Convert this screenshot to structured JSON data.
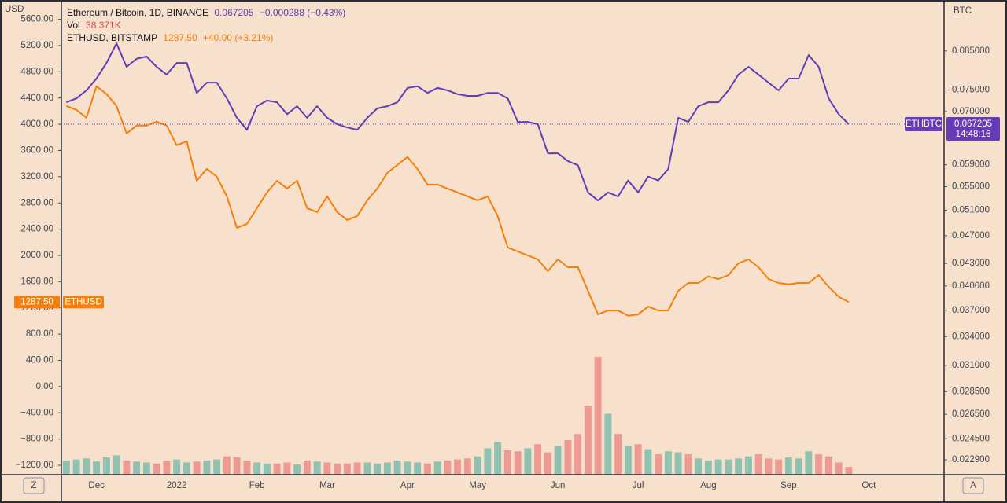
{
  "chart_data": {
    "type": "line",
    "ylabel": "USD",
    "y2label": "BTC",
    "legend": [
      {
        "text": "Ethereum / Bitcoin, 1D, BINANCE",
        "price": "0.067205",
        "change": "−0.000288 (−0.43%)"
      },
      {
        "text": "Vol",
        "price": "38.371K"
      },
      {
        "text": "ETHUSD, BITSTAMP",
        "price": "1287.50",
        "change": "+40.00 (+3.21%)"
      }
    ],
    "countdown": "14:48:16",
    "buttons": [
      "Z",
      "A"
    ],
    "categories": [
      null,
      null,
      null,
      "Dec",
      null,
      null,
      null,
      null,
      null,
      null,
      null,
      "2022",
      null,
      null,
      null,
      null,
      null,
      null,
      null,
      "Feb",
      null,
      null,
      null,
      null,
      null,
      null,
      "Mar",
      null,
      null,
      null,
      null,
      null,
      null,
      null,
      "Apr",
      null,
      null,
      null,
      null,
      null,
      null,
      "May",
      null,
      null,
      null,
      null,
      null,
      null,
      null,
      "Jun",
      null,
      null,
      null,
      null,
      null,
      null,
      null,
      "Jul",
      null,
      null,
      null,
      null,
      null,
      null,
      "Aug",
      null,
      null,
      null,
      null,
      null,
      null,
      null,
      "Sep",
      null,
      null,
      null,
      null,
      null,
      null,
      null,
      "Oct",
      null,
      null,
      null,
      null,
      null,
      null,
      null
    ],
    "series": [
      {
        "name": "ETHBTC",
        "color": "#673ab7",
        "axis": "y2",
        "values": [
          0.0721,
          0.073,
          0.0749,
          0.0778,
          0.0818,
          0.0871,
          0.0808,
          0.0829,
          0.0835,
          0.0808,
          0.0788,
          0.0818,
          0.0818,
          0.0743,
          0.0768,
          0.0768,
          0.073,
          0.0686,
          0.066,
          0.0712,
          0.0725,
          0.0721,
          0.0694,
          0.0712,
          0.0686,
          0.0712,
          0.0686,
          0.0672,
          0.0665,
          0.066,
          0.0686,
          0.0707,
          0.0712,
          0.0721,
          0.0755,
          0.0759,
          0.0743,
          0.0755,
          0.0749,
          0.074,
          0.0736,
          0.0736,
          0.0743,
          0.0743,
          0.073,
          0.0677,
          0.0677,
          0.0672,
          0.0612,
          0.0612,
          0.0597,
          0.0589,
          0.054,
          0.0526,
          0.054,
          0.0533,
          0.0561,
          0.054,
          0.0568,
          0.0561,
          0.0582,
          0.0686,
          0.0677,
          0.0712,
          0.0721,
          0.0721,
          0.0749,
          0.0788,
          0.0808,
          0.0788,
          0.0768,
          0.0749,
          0.0778,
          0.0778,
          0.0839,
          0.0808,
          0.073,
          0.0694,
          0.067205,
          null,
          null,
          null,
          null,
          null,
          null,
          null,
          null,
          null
        ]
      },
      {
        "name": "ETHUSD",
        "color": "#f57f0c",
        "values": [
          4280,
          4220,
          4100,
          4580,
          4460,
          4280,
          3860,
          3980,
          3980,
          4040,
          3980,
          3680,
          3740,
          3140,
          3320,
          3200,
          2900,
          2420,
          2480,
          2720,
          2960,
          3140,
          3020,
          3140,
          2720,
          2660,
          2900,
          2660,
          2540,
          2600,
          2840,
          3020,
          3260,
          3380,
          3500,
          3320,
          3080,
          3080,
          3020,
          2960,
          2900,
          2840,
          2900,
          2600,
          2120,
          2060,
          2000,
          1940,
          1760,
          1940,
          1820,
          1820,
          1460,
          1100,
          1160,
          1160,
          1080,
          1100,
          1220,
          1160,
          1160,
          1460,
          1580,
          1580,
          1680,
          1640,
          1700,
          1880,
          1940,
          1820,
          1640,
          1580,
          1560,
          1580,
          1580,
          1700,
          1520,
          1370,
          1287.5,
          null,
          null,
          null,
          null,
          null,
          null,
          null,
          null,
          null
        ]
      }
    ],
    "volume": {
      "up_color": "#8fc2b0",
      "down_color": "#ec9a92",
      "values": [
        70,
        75,
        80,
        65,
        85,
        95,
        70,
        65,
        60,
        55,
        70,
        75,
        60,
        65,
        70,
        75,
        90,
        85,
        70,
        60,
        55,
        55,
        60,
        50,
        70,
        65,
        60,
        55,
        55,
        60,
        60,
        55,
        60,
        70,
        65,
        60,
        55,
        65,
        70,
        75,
        80,
        90,
        130,
        160,
        120,
        115,
        130,
        150,
        110,
        140,
        170,
        200,
        340,
        580,
        300,
        200,
        140,
        150,
        125,
        100,
        115,
        110,
        100,
        80,
        70,
        75,
        75,
        80,
        90,
        100,
        80,
        75,
        85,
        80,
        115,
        100,
        90,
        60,
        38.371,
        null,
        null,
        null,
        null,
        null,
        null,
        null,
        null,
        null
      ]
    },
    "ylim": [
      -1344,
      5895
    ],
    "yticks": [
      {
        "value": 5600,
        "label": "5600.00"
      },
      {
        "value": 5200,
        "label": "5200.00"
      },
      {
        "value": 4800,
        "label": "4800.00"
      },
      {
        "value": 4400,
        "label": "4400.00"
      },
      {
        "value": 4000,
        "label": "4000.00"
      },
      {
        "value": 3600,
        "label": "3600.00"
      },
      {
        "value": 3200,
        "label": "3200.00"
      },
      {
        "value": 2800,
        "label": "2800.00"
      },
      {
        "value": 2400,
        "label": "2400.00"
      },
      {
        "value": 2000,
        "label": "2000.00"
      },
      {
        "value": 1600,
        "label": "1600.00"
      },
      {
        "value": 1200,
        "label": "1200.00"
      },
      {
        "value": 800,
        "label": "800.00"
      },
      {
        "value": 400,
        "label": "400.00"
      },
      {
        "value": 0,
        "label": "0.00"
      },
      {
        "value": -400,
        "label": "−400.00"
      },
      {
        "value": -800,
        "label": "−800.00"
      },
      {
        "value": -1200,
        "label": "−1200.00"
      }
    ],
    "y2lim": [
      0.02183,
      0.1001
    ],
    "y2log": true,
    "y2ticks": [
      {
        "value": 0.085,
        "label": "0.085000"
      },
      {
        "value": 0.075,
        "label": "0.075000"
      },
      {
        "value": 0.07,
        "label": "0.070000"
      },
      {
        "value": 0.059,
        "label": "0.059000"
      },
      {
        "value": 0.055,
        "label": "0.055000"
      },
      {
        "value": 0.051,
        "label": "0.051000"
      },
      {
        "value": 0.047,
        "label": "0.047000"
      },
      {
        "value": 0.043,
        "label": "0.043000"
      },
      {
        "value": 0.04,
        "label": "0.040000"
      },
      {
        "value": 0.037,
        "label": "0.037000"
      },
      {
        "value": 0.034,
        "label": "0.034000"
      },
      {
        "value": 0.031,
        "label": "0.031000"
      },
      {
        "value": 0.0285,
        "label": "0.028500"
      },
      {
        "value": 0.0265,
        "label": "0.026500"
      },
      {
        "value": 0.0245,
        "label": "0.024500"
      },
      {
        "value": 0.0229,
        "label": "0.022900"
      }
    ]
  }
}
